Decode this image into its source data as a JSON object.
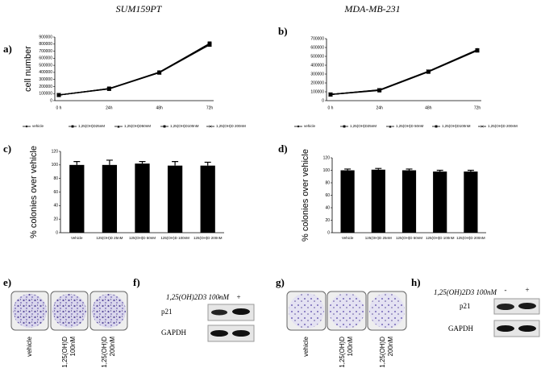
{
  "headers": [
    "SUM159PT",
    "MDA-MB-231"
  ],
  "panel_letters": [
    "a)",
    "b)",
    "c)",
    "d)",
    "e)",
    "f)",
    "g)",
    "h)"
  ],
  "chart_data": [
    {
      "type": "line",
      "ylabel": "cell number",
      "categories": [
        "0 h",
        "24h",
        "48h",
        "72h"
      ],
      "ylim": [
        0,
        900000
      ],
      "yticks": [
        0,
        100000,
        200000,
        300000,
        400000,
        500000,
        600000,
        700000,
        800000,
        900000
      ],
      "legend": "bottom",
      "series": [
        {
          "name": "vehicle",
          "color": "#000000",
          "marker": "diamond",
          "values": [
            80000,
            170000,
            400000,
            800000
          ]
        },
        {
          "name": "1,25(OH)D25nM",
          "color": "#000000",
          "marker": "square",
          "values": [
            80000,
            165000,
            395000,
            790000
          ]
        },
        {
          "name": "1,25(OH)D50nM",
          "color": "#000000",
          "marker": "triangle",
          "values": [
            80000,
            170000,
            405000,
            805000
          ]
        },
        {
          "name": "1,25(OH)D100nM",
          "color": "#000000",
          "marker": "square",
          "values": [
            80000,
            172000,
            400000,
            810000
          ]
        },
        {
          "name": "1,25(OH)D 200nM",
          "color": "#000000",
          "marker": "x",
          "values": [
            80000,
            168000,
            398000,
            795000
          ]
        }
      ]
    },
    {
      "type": "line",
      "categories": [
        "0 h",
        "24h",
        "48h",
        "72h"
      ],
      "ylim": [
        0,
        700000
      ],
      "yticks": [
        0,
        100000,
        200000,
        300000,
        400000,
        500000,
        600000,
        700000
      ],
      "legend": "bottom",
      "series": [
        {
          "name": "vehicle",
          "color": "#000000",
          "marker": "diamond",
          "values": [
            70000,
            120000,
            330000,
            570000
          ]
        },
        {
          "name": "1,25(OH)D25nM",
          "color": "#000000",
          "marker": "square",
          "values": [
            70000,
            115000,
            325000,
            565000
          ]
        },
        {
          "name": "1,25(OH)D 50nM",
          "color": "#000000",
          "marker": "triangle",
          "values": [
            70000,
            122000,
            332000,
            575000
          ]
        },
        {
          "name": "1,25(OH)D100nM",
          "color": "#000000",
          "marker": "square",
          "values": [
            70000,
            118000,
            328000,
            570000
          ]
        },
        {
          "name": "1,25(OH)D 200nM",
          "color": "#000000",
          "marker": "x",
          "values": [
            70000,
            120000,
            330000,
            568000
          ]
        }
      ]
    },
    {
      "type": "bar",
      "ylabel": "% colonies over vehicle",
      "color": "#000000",
      "categories": [
        "Vehicle",
        "125(OH)D 25nM",
        "125(OH)D 50nM",
        "125(OH)D 100nM",
        "125(OH)D 200nM"
      ],
      "values": [
        100,
        100,
        102,
        99,
        99
      ],
      "errors": [
        5,
        7,
        3,
        6,
        5
      ],
      "ylim": [
        0,
        120
      ],
      "yticks": [
        0,
        20,
        40,
        60,
        80,
        100,
        120
      ]
    },
    {
      "type": "bar",
      "ylabel": "% colonies over vehicle",
      "color": "#000000",
      "categories": [
        "Vehicle",
        "125(OH)D 25nM",
        "125(OH)D 50nM",
        "125(OH)D 100nM",
        "125(OH)D 200nM"
      ],
      "values": [
        100,
        101,
        100,
        98,
        98
      ],
      "errors": [
        2,
        2,
        2,
        2,
        2
      ],
      "ylim": [
        0,
        120
      ],
      "yticks": [
        0,
        20,
        40,
        60,
        80,
        100,
        120
      ]
    }
  ],
  "dish_panels": [
    {
      "labels": [
        [
          "vehicle"
        ],
        [
          "1,25(OH)D",
          "100nM"
        ],
        [
          "1,25(OH)D",
          "200nM"
        ]
      ]
    },
    {
      "labels": [
        [
          "vehicle"
        ],
        [
          "1,25(OH)D",
          "100nM"
        ],
        [
          "1,25(OH)D",
          "200nM"
        ]
      ]
    }
  ],
  "blots": [
    {
      "treatment": "1,25(OH)2D3 100nM",
      "lanes": [
        "-",
        "+"
      ],
      "bands": [
        "p21",
        "GAPDH"
      ]
    },
    {
      "treatment": "1,25(OH)2D3 100nM",
      "lanes": [
        "-",
        "+"
      ],
      "bands": [
        "p21",
        "GAPDH"
      ]
    }
  ]
}
